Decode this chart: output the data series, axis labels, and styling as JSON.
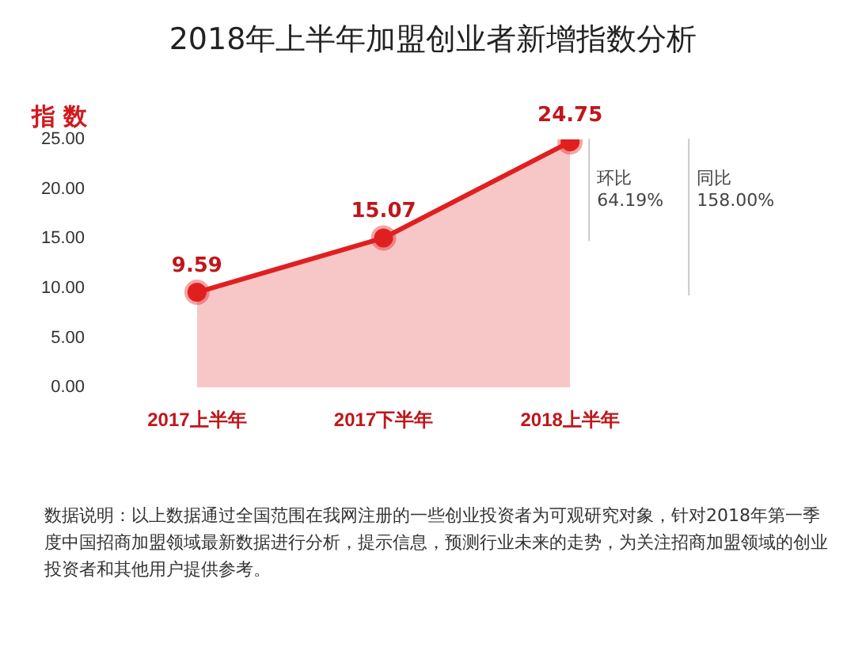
{
  "chart_data": {
    "type": "area",
    "title": "2018年上半年加盟创业者新增指数分析",
    "ylabel": "指 数",
    "categories": [
      "2017上半年",
      "2017下半年",
      "2018上半年"
    ],
    "series": [
      {
        "color": "#e0201f",
        "values": [
          9.59,
          15.07,
          24.75
        ]
      }
    ],
    "ylim": [
      0,
      25
    ],
    "yticks": [
      {
        "value": 0,
        "label": "0.00"
      },
      {
        "value": 5,
        "label": "5.00"
      },
      {
        "value": 10,
        "label": "10.00"
      },
      {
        "value": 15,
        "label": "15.00"
      },
      {
        "value": 20,
        "label": "20.00"
      },
      {
        "value": 25,
        "label": "25.00"
      }
    ],
    "grid": false,
    "legend": false,
    "marker": "circle",
    "data_labels": true,
    "annotations": [
      "环比 64.19%",
      "同比 158.00%",
      "数据说明：以上数据通过全国范围在我网注册的一些创业投资者为可观研究对象，针对2018年第一季度中国招商加盟领域最新数据进行分析，提示信息，预测行业未来的走势，为关注招商加盟领域的创业投资者和其他用户提供参考。"
    ]
  }
}
